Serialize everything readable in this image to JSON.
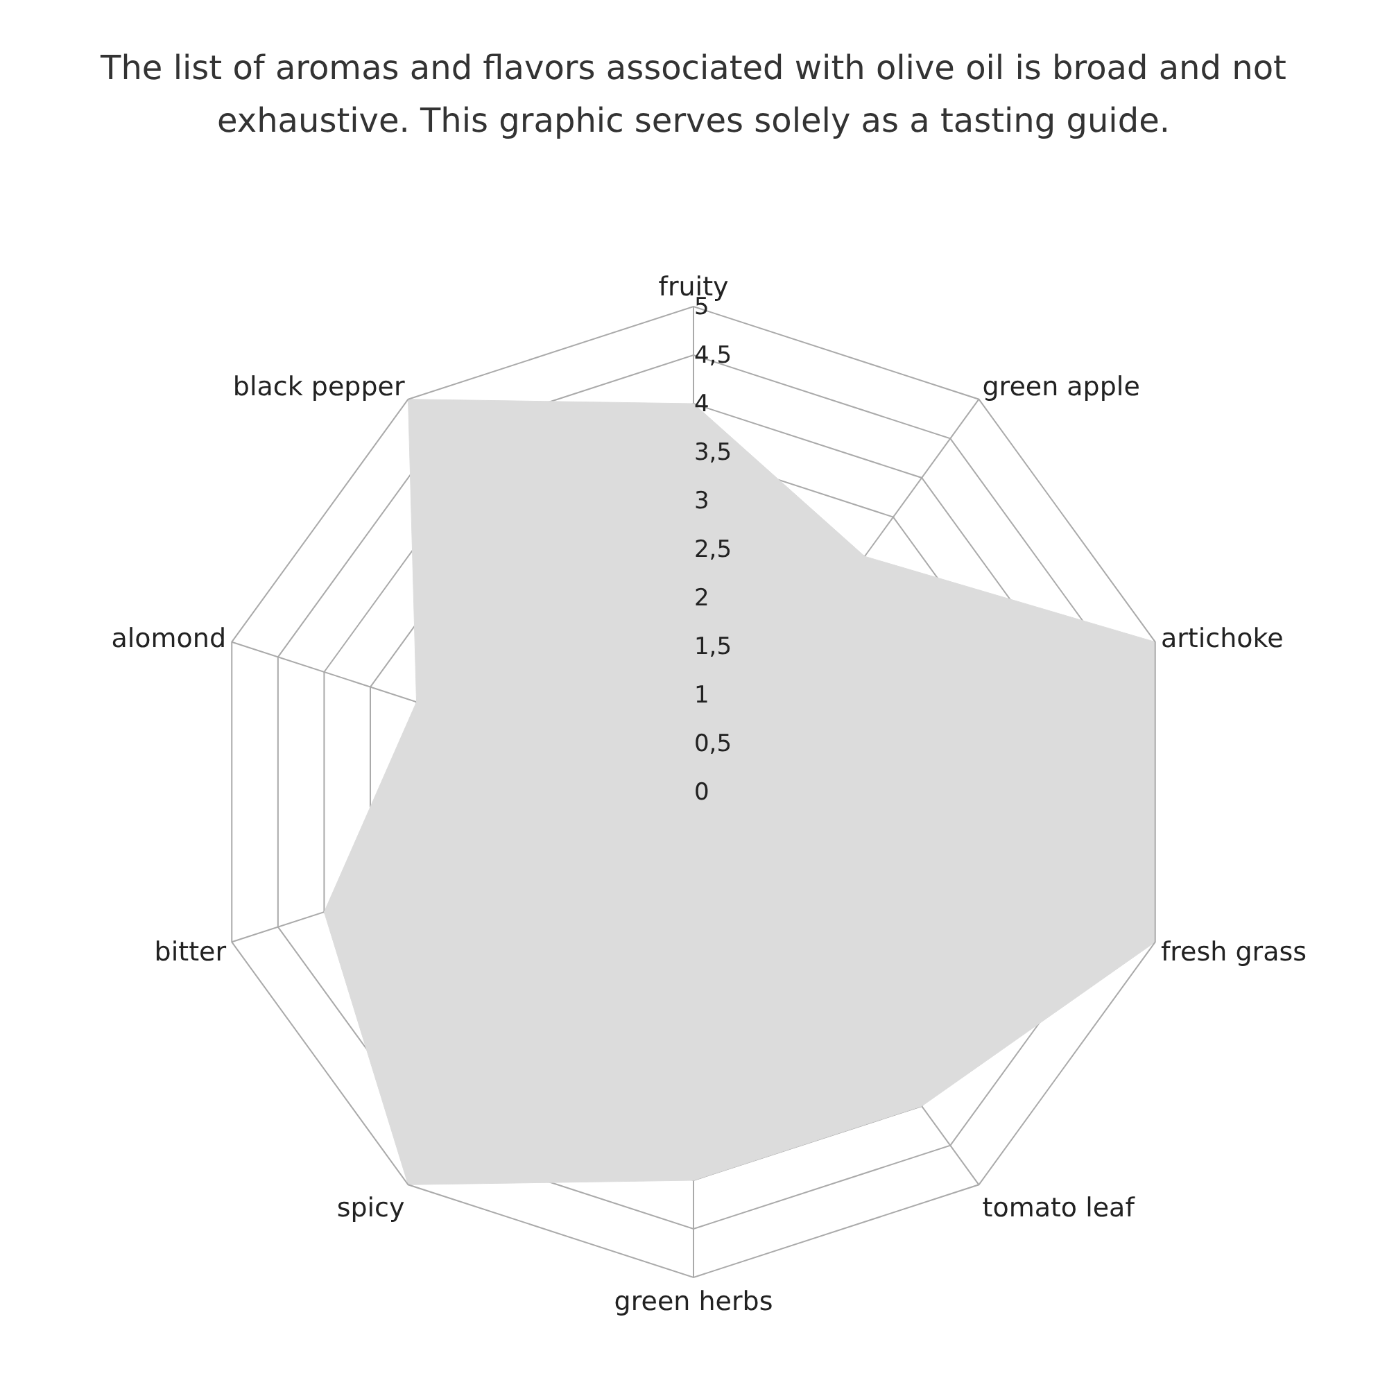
{
  "chart_data": {
    "type": "radar",
    "title": "The list of aromas and flavors associated with olive oil is broad and not exhaustive. This graphic serves solely as a tasting guide.",
    "categories": [
      "fruity",
      "green apple",
      "artichoke",
      "fresh grass",
      "tomato leaf",
      "green herbs",
      "spicy",
      "bitter",
      "alomond",
      "black pepper"
    ],
    "series": [
      {
        "color": "#dcdcdc",
        "values": [
          4,
          3,
          5,
          5,
          4,
          4,
          5,
          4,
          3,
          5
        ]
      }
    ],
    "ylim": [
      0,
      5
    ],
    "yticks": [
      0,
      {
        "value": 0.5,
        "label": "0,5"
      },
      1,
      {
        "value": 1.5,
        "label": "1,5"
      },
      2,
      {
        "value": 2.5,
        "label": "2,5"
      },
      3,
      {
        "value": 3.5,
        "label": "3,5"
      },
      4,
      {
        "value": 4.5,
        "label": "4,5"
      },
      5
    ],
    "grid": true,
    "marker": "none"
  }
}
